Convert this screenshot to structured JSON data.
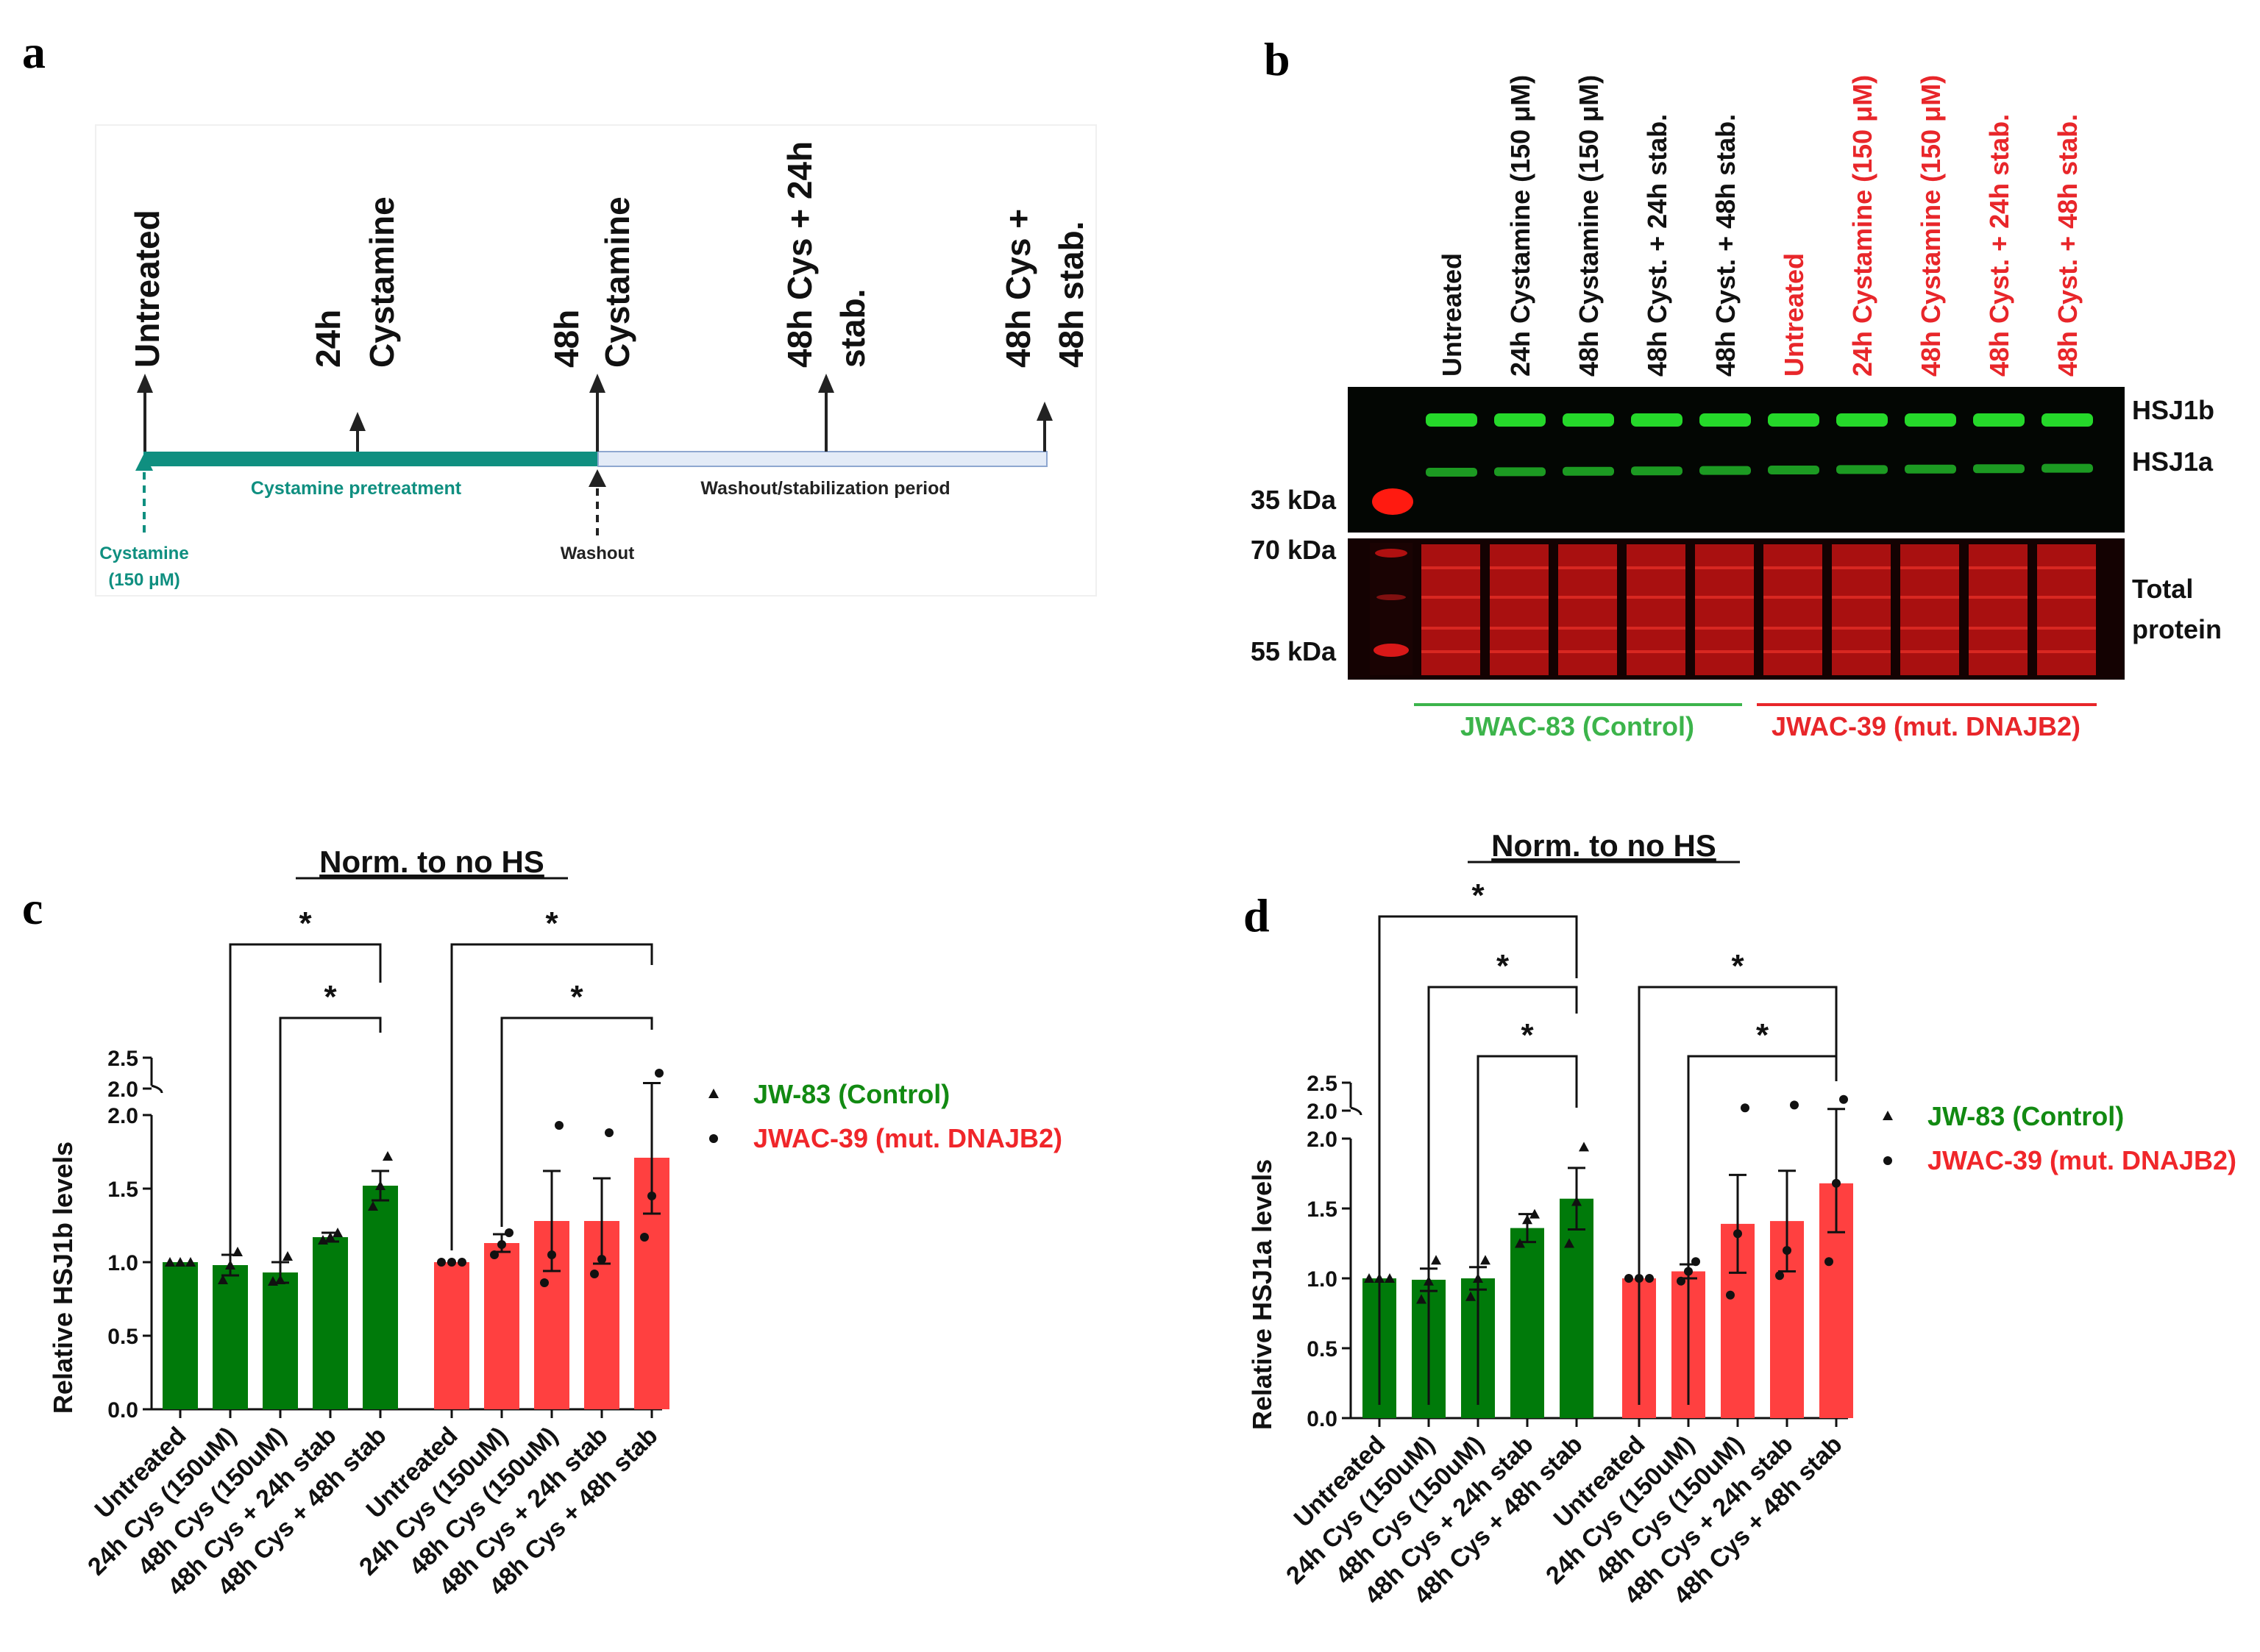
{
  "panel_labels": {
    "a": "a",
    "b": "b",
    "c": "c",
    "d": "d"
  },
  "timeline": {
    "labels": [
      {
        "text": "Untreated"
      },
      {
        "line1": "24h",
        "line2": "Cystamine"
      },
      {
        "line1": "48h",
        "line2": "Cystamine"
      },
      {
        "line1": "48h Cys + 24h",
        "line2": "stab."
      },
      {
        "line1": "48h Cys +",
        "line2": "48h stab."
      }
    ],
    "pretreatment": "Cystamine pretreatment",
    "washout_period": "Washout/stabilization period",
    "start_line1": "Cystamine",
    "start_line2": "(150 μM)",
    "washout": "Washout"
  },
  "blot": {
    "lanes": [
      {
        "label": "Untreated",
        "group": "control"
      },
      {
        "label": "24h Cystamine (150 μM)",
        "group": "control"
      },
      {
        "label": "48h Cystamine (150 μM)",
        "group": "control"
      },
      {
        "label": "48h Cyst. + 24h stab.",
        "group": "control"
      },
      {
        "label": "48h Cyst. + 48h stab.",
        "group": "control"
      },
      {
        "label": "Untreated",
        "group": "mutant"
      },
      {
        "label": "24h Cystamine (150 μM)",
        "group": "mutant"
      },
      {
        "label": "48h Cystamine (150 μM)",
        "group": "mutant"
      },
      {
        "label": "48h Cyst. + 24h stab.",
        "group": "mutant"
      },
      {
        "label": "48h Cyst. + 48h stab.",
        "group": "mutant"
      }
    ],
    "band_labels": {
      "hsj1b": "HSJ1b",
      "hsj1a": "HSJ1a",
      "total1": "Total",
      "total2": "protein"
    },
    "markers": {
      "m35": "35 kDa",
      "m70": "70 kDa",
      "m55": "55 kDa"
    },
    "group_control": "JWAC-83 (Control)",
    "group_mutant": "JWAC-39 (mut. DNAJB2)",
    "colors": {
      "control": "#3cb44b",
      "mutant": "#e8262a"
    }
  },
  "chart_data": [
    {
      "type": "bar",
      "panel": "c",
      "title": "Norm. to no HS",
      "ylabel": "Relative HSJ1b levels",
      "ylim": [
        0,
        2.5
      ],
      "axis_break": true,
      "yticks": [
        "0.0",
        "0.5",
        "1.0",
        "1.5",
        "2.0",
        "2.0",
        "2.5"
      ],
      "categories": [
        "Untreated",
        "24h Cys (150uM)",
        "48h Cys (150uM)",
        "48h Cys + 24h stab",
        "48h Cys + 48h stab"
      ],
      "series": [
        {
          "name": "JW-83 (Control)",
          "color": "#007a0a",
          "marker": "triangle",
          "values": [
            1.0,
            0.98,
            0.93,
            1.17,
            1.52
          ],
          "errors": [
            0.0,
            0.07,
            0.07,
            0.03,
            0.1
          ],
          "points": [
            [
              1.0,
              1.0,
              1.0
            ],
            [
              0.88,
              0.98,
              1.07
            ],
            [
              0.87,
              0.88,
              1.04
            ],
            [
              1.15,
              1.17,
              1.2
            ],
            [
              1.38,
              1.52,
              1.72
            ]
          ]
        },
        {
          "name": "JWAC-39 (mut. DNAJB2)",
          "color": "#ff4040",
          "marker": "circle",
          "values": [
            1.0,
            1.13,
            1.28,
            1.28,
            1.71
          ],
          "errors": [
            0.0,
            0.06,
            0.34,
            0.29,
            0.38
          ],
          "points": [
            [
              1.0,
              1.0,
              1.0
            ],
            [
              1.05,
              1.12,
              1.2
            ],
            [
              0.86,
              1.05,
              1.93
            ],
            [
              0.92,
              1.02,
              1.88
            ],
            [
              1.17,
              1.45,
              2.25
            ]
          ]
        }
      ],
      "significance": [
        {
          "series": 0,
          "from": 1,
          "to": 4,
          "label": "*"
        },
        {
          "series": 0,
          "from": 2,
          "to": 4,
          "label": "*"
        },
        {
          "series": 1,
          "from": 0,
          "to": 4,
          "label": "*"
        },
        {
          "series": 1,
          "from": 1,
          "to": 4,
          "label": "*"
        }
      ]
    },
    {
      "type": "bar",
      "panel": "d",
      "title": "Norm. to no HS",
      "ylabel": "Relative HSJ1a levels",
      "ylim": [
        0,
        2.5
      ],
      "axis_break": true,
      "yticks": [
        "0.0",
        "0.5",
        "1.0",
        "1.5",
        "2.0",
        "2.0",
        "2.5"
      ],
      "categories": [
        "Untreated",
        "24h Cys (150uM)",
        "48h Cys (150uM)",
        "48h Cys + 24h stab",
        "48h Cys + 48h stab"
      ],
      "series": [
        {
          "name": "JW-83 (Control)",
          "color": "#007a0a",
          "marker": "triangle",
          "values": [
            1.0,
            0.99,
            1.0,
            1.36,
            1.57
          ],
          "errors": [
            0.0,
            0.08,
            0.08,
            0.1,
            0.22
          ],
          "points": [
            [
              1.0,
              1.0,
              1.0
            ],
            [
              0.85,
              0.98,
              1.13
            ],
            [
              0.87,
              1.0,
              1.13
            ],
            [
              1.25,
              1.42,
              1.46
            ],
            [
              1.25,
              1.55,
              1.94
            ]
          ]
        },
        {
          "name": "JWAC-39 (mut. DNAJB2)",
          "color": "#ff4040",
          "marker": "circle",
          "values": [
            1.0,
            1.05,
            1.39,
            1.41,
            1.68
          ],
          "errors": [
            0.0,
            0.05,
            0.35,
            0.36,
            0.35
          ],
          "points": [
            [
              1.0,
              1.0,
              1.0
            ],
            [
              0.98,
              1.05,
              1.12
            ],
            [
              0.88,
              1.32,
              2.05
            ],
            [
              1.02,
              1.2,
              2.1
            ],
            [
              1.12,
              1.68,
              2.2
            ]
          ]
        }
      ],
      "significance": [
        {
          "series": 0,
          "from": 0,
          "to": 4,
          "label": "*"
        },
        {
          "series": 0,
          "from": 1,
          "to": 4,
          "label": "*"
        },
        {
          "series": 0,
          "from": 2,
          "to": 4,
          "label": "*"
        },
        {
          "series": 1,
          "from": 0,
          "to": 4,
          "label": "*"
        },
        {
          "series": 1,
          "from": 1,
          "to": 4,
          "label": "*"
        }
      ]
    }
  ]
}
